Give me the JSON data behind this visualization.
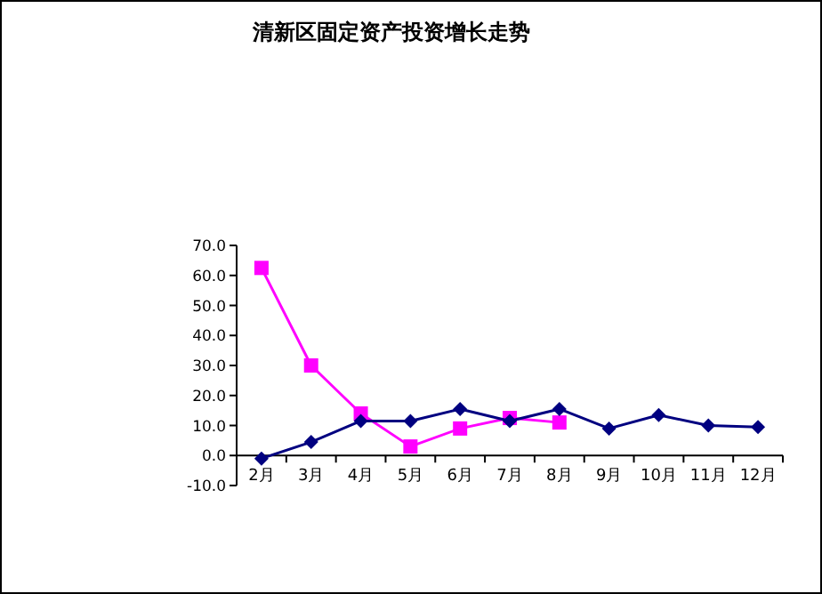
{
  "chart_data": {
    "type": "line",
    "title": "清新区固定资产投资增长走势",
    "categories": [
      "2月",
      "3月",
      "4月",
      "5月",
      "6月",
      "7月",
      "8月",
      "9月",
      "10月",
      "11月",
      "12月"
    ],
    "series": [
      {
        "color": "#000080",
        "marker": "diamond",
        "values": [
          -1,
          4.5,
          11.5,
          11.5,
          15.5,
          11.5,
          15.5,
          9,
          13.5,
          10,
          9.5
        ]
      },
      {
        "color": "#ff00ff",
        "marker": "square",
        "values": [
          62.5,
          30,
          14,
          3,
          9,
          12.5,
          11,
          null,
          null,
          null,
          null
        ]
      }
    ],
    "ylim": [
      -10,
      70
    ],
    "yticks": [
      {
        "value": -10,
        "label": "-10.0"
      },
      {
        "value": 0,
        "label": "0.0"
      },
      {
        "value": 10,
        "label": "10.0"
      },
      {
        "value": 20,
        "label": "20.0"
      },
      {
        "value": 30,
        "label": "30.0"
      },
      {
        "value": 40,
        "label": "40.0"
      },
      {
        "value": 50,
        "label": "50.0"
      },
      {
        "value": 60,
        "label": "60.0"
      },
      {
        "value": 70,
        "label": "70.0"
      }
    ],
    "grid": false,
    "legend": false
  }
}
